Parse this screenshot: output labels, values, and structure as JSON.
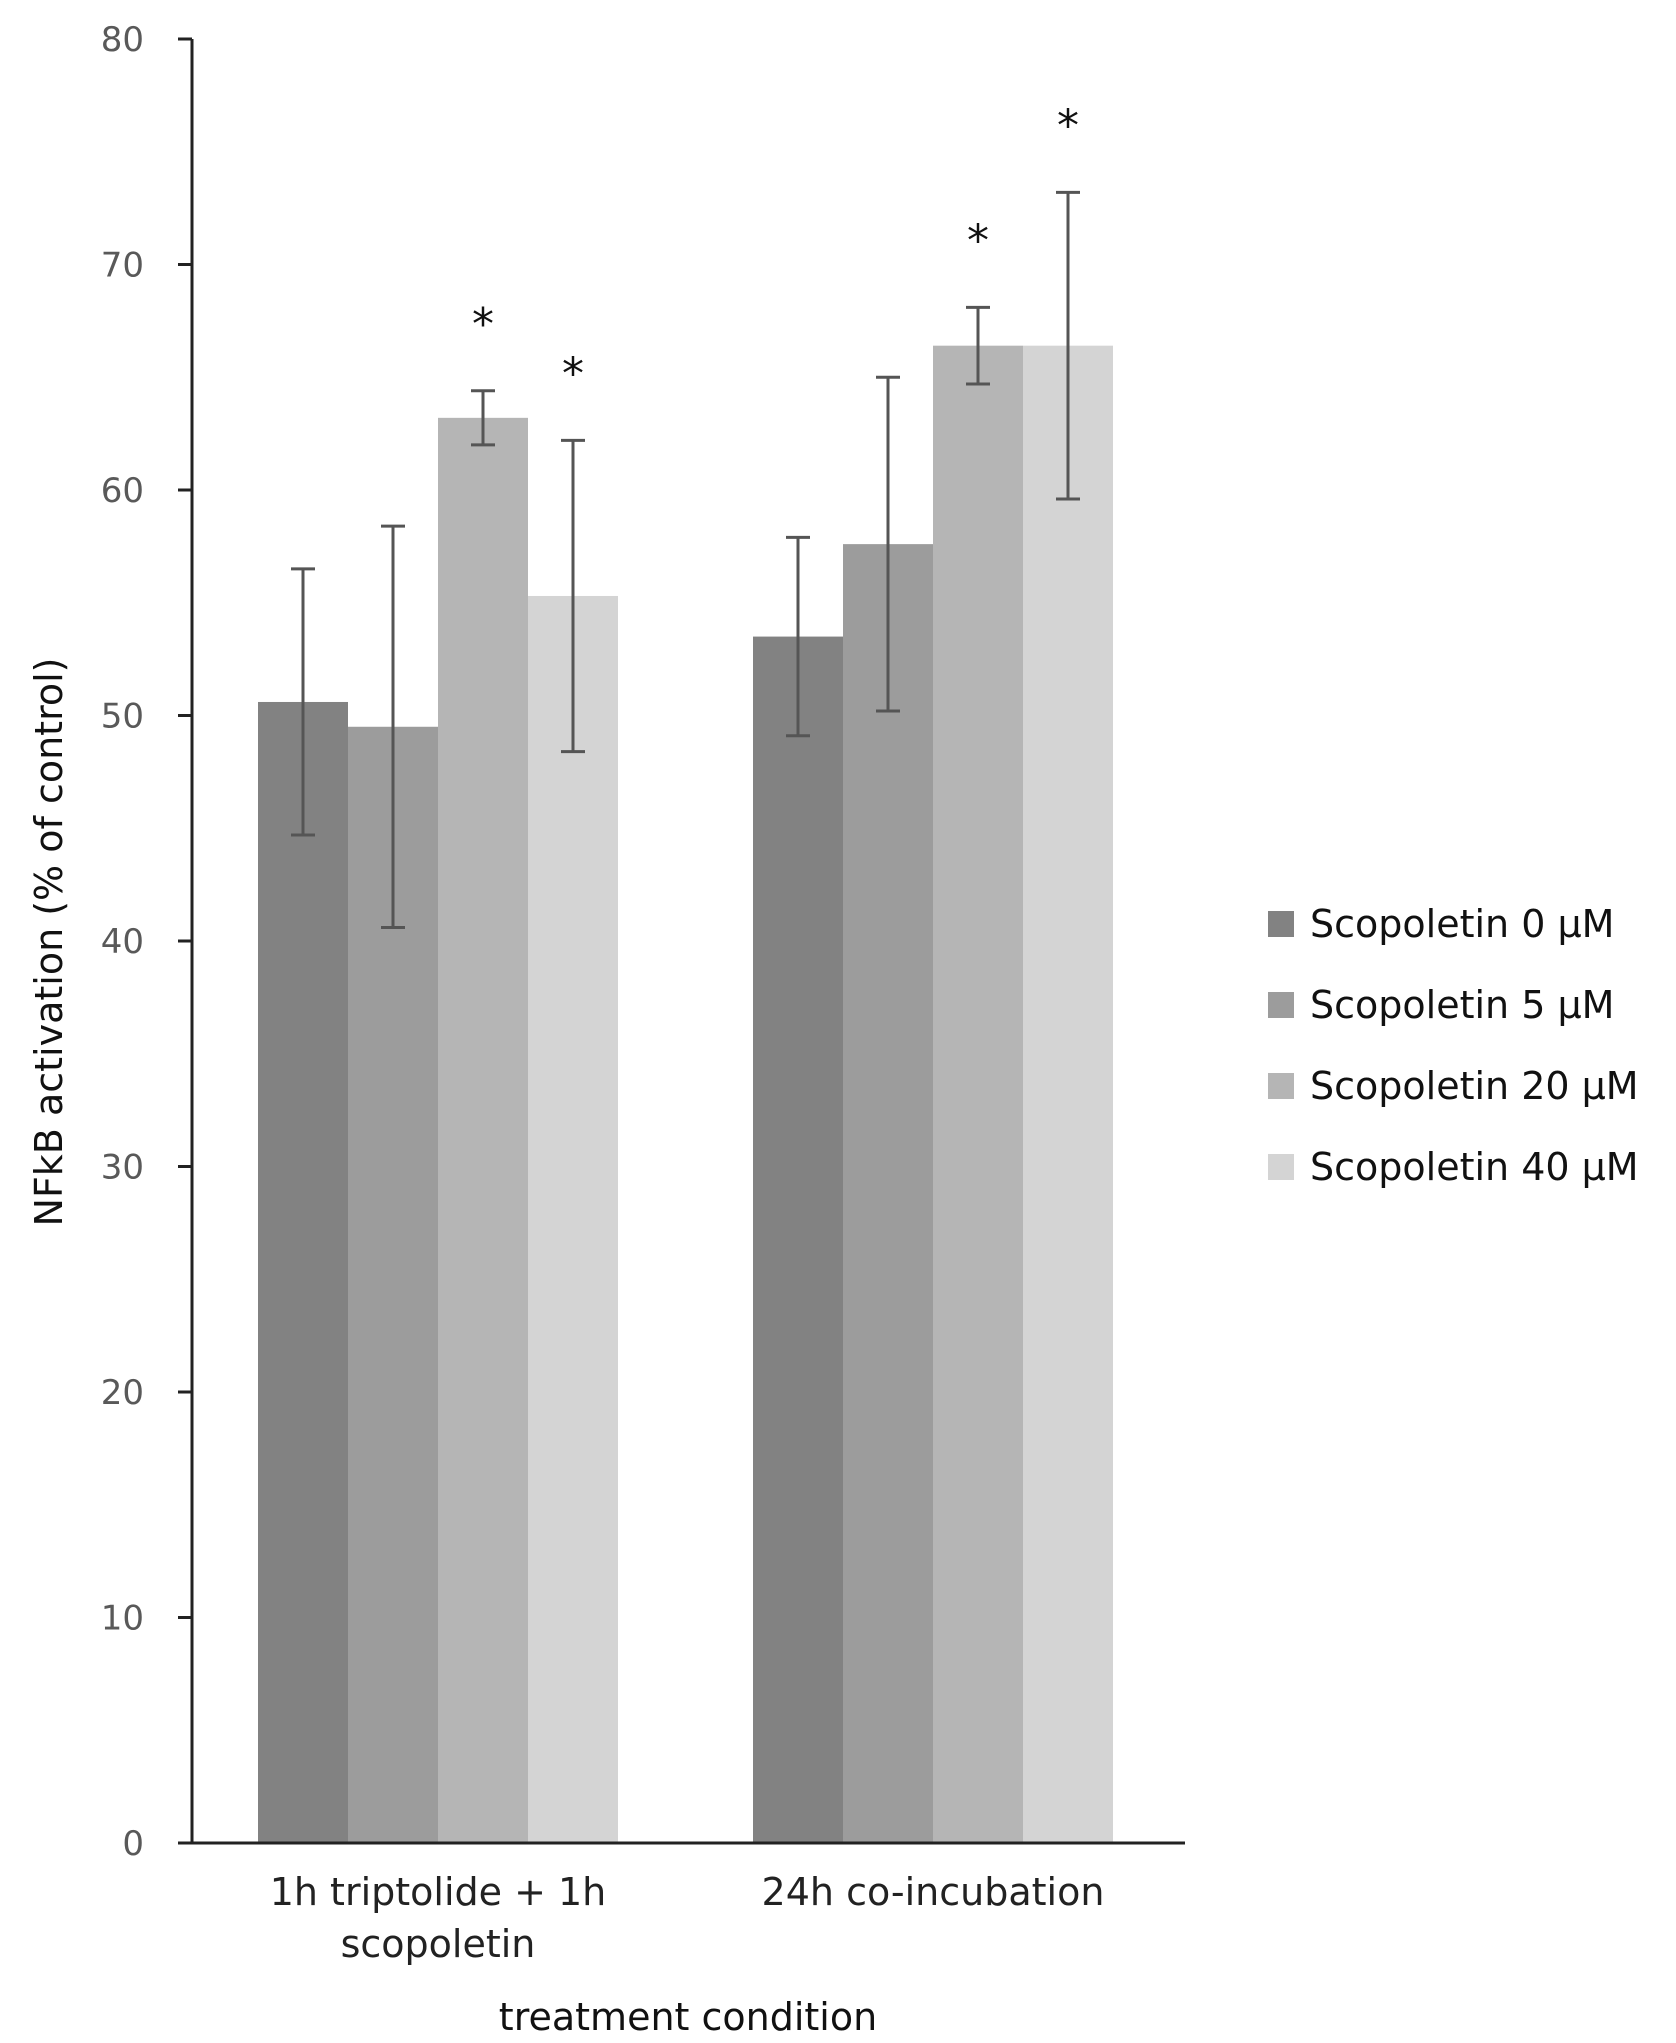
{
  "chart_data": {
    "type": "bar",
    "title": "",
    "xlabel": "treatment condition",
    "ylabel": "NFkB activation (% of control)",
    "ylim": [
      0,
      80
    ],
    "yticks": [
      0,
      10,
      20,
      30,
      40,
      50,
      60,
      70,
      80
    ],
    "categories": [
      [
        "1h triptolide + 1h",
        "scopoletin"
      ],
      [
        "24h co-incubation"
      ]
    ],
    "series": [
      {
        "name": "Scopoletin 0 µM",
        "color": "#828282",
        "values": [
          50.6,
          53.5
        ],
        "errors": [
          5.9,
          4.4
        ],
        "significant": [
          false,
          false
        ]
      },
      {
        "name": "Scopoletin 5 µM",
        "color": "#9c9c9c",
        "values": [
          49.5,
          57.6
        ],
        "errors": [
          8.9,
          7.4
        ],
        "significant": [
          false,
          false
        ]
      },
      {
        "name": "Scopoletin 20 µM",
        "color": "#b5b5b5",
        "values": [
          63.2,
          66.4
        ],
        "errors": [
          1.2,
          1.7
        ],
        "significant": [
          true,
          true
        ]
      },
      {
        "name": "Scopoletin 40 µM",
        "color": "#d4d4d4",
        "values": [
          55.3,
          66.4
        ],
        "errors": [
          6.9,
          6.8
        ],
        "significant": [
          true,
          true
        ]
      }
    ],
    "significance_marker": "*",
    "legend_position": "right",
    "grid": false
  }
}
